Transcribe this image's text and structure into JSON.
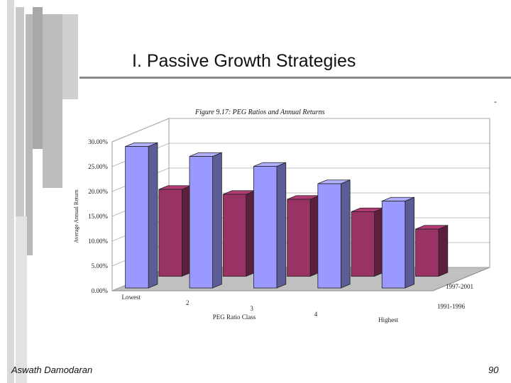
{
  "slide": {
    "title": "I. Passive Growth Strategies",
    "corner_mark": "-",
    "footer_author": "Aswath Damodaran",
    "page_number": "90"
  },
  "colors": {
    "series_1997_2001": "#9999ff",
    "series_1991_1996": "#993366",
    "deco_gray": "#c4c4c4"
  },
  "chart_data": {
    "type": "bar",
    "title": "Figure 9.17: PEG Ratios and Annual Returns",
    "xlabel": "PEG Ratio Class",
    "ylabel": "Average Annual Return",
    "categories": [
      "Lowest",
      "2",
      "3",
      "4",
      "Highest"
    ],
    "y_ticks": [
      "0.00%",
      "5.00%",
      "10.00%",
      "15.00%",
      "20.00%",
      "25.00%",
      "30.00%"
    ],
    "ylim": [
      0,
      30
    ],
    "series": [
      {
        "name": "1997-2001",
        "values": [
          28.5,
          26.5,
          24.5,
          21.0,
          17.5
        ]
      },
      {
        "name": "1991-1996",
        "values": [
          17.5,
          16.5,
          15.5,
          13.0,
          9.5
        ]
      }
    ],
    "three_d": true,
    "grid": true,
    "legend_placement": "series labels on depth axis, right"
  }
}
